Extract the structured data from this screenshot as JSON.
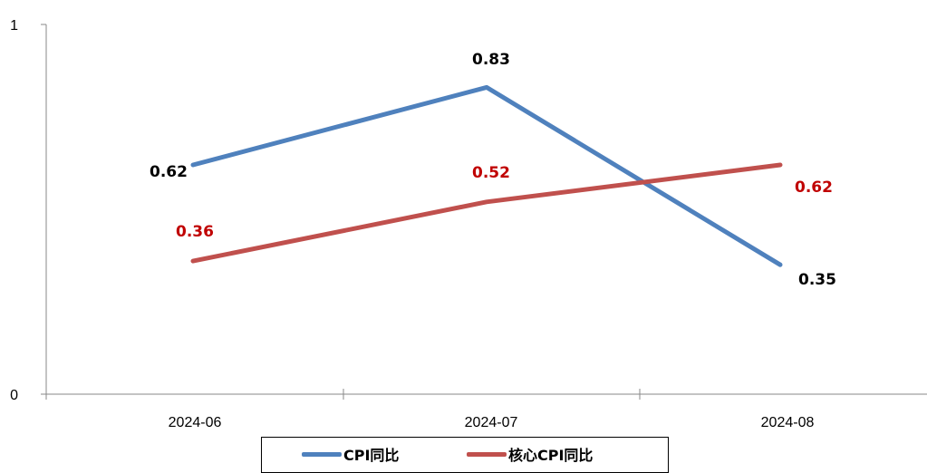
{
  "chart_data": {
    "type": "line",
    "categories": [
      "2024-06",
      "2024-07",
      "2024-08"
    ],
    "series": [
      {
        "name": "CPI同比",
        "values": [
          0.62,
          0.83,
          0.35
        ],
        "color": "#4F81BD",
        "label_color": "#000000"
      },
      {
        "name": "核心CPI同比",
        "values": [
          0.36,
          0.52,
          0.62
        ],
        "color": "#C0504D",
        "label_color": "#C00000"
      }
    ],
    "data_labels": {
      "series_0": [
        "0.62",
        "0.83",
        "0.35"
      ],
      "series_1": [
        "0.36",
        "0.52",
        "0.62"
      ]
    },
    "ylim": [
      0,
      1
    ],
    "y_ticks": [
      "0",
      "1"
    ],
    "grid": false,
    "legend": "bottom"
  }
}
